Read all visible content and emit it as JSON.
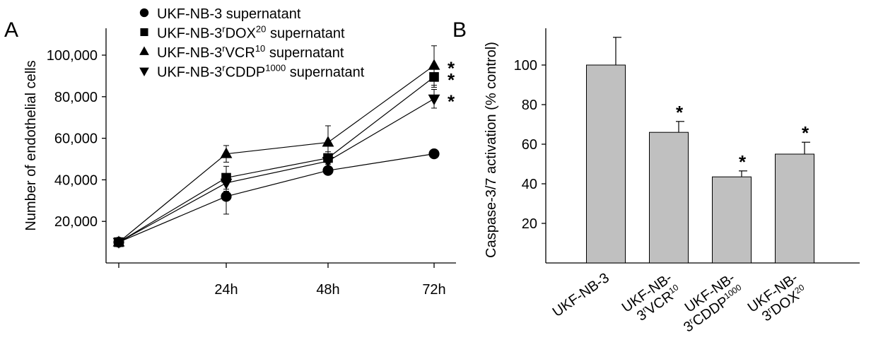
{
  "panels": {
    "a_label": "A",
    "b_label": "B"
  },
  "chart_data": [
    {
      "type": "line",
      "ylabel": "Number of endothelial cells",
      "xlabel": "",
      "x": [
        "0h",
        "24h",
        "48h",
        "72h"
      ],
      "x_tick_labels": [
        "",
        "24h",
        "48h",
        "72h"
      ],
      "ylim": [
        0,
        110000
      ],
      "y_ticks": [
        20000,
        40000,
        60000,
        80000,
        100000
      ],
      "y_tick_labels": [
        "20,000",
        "40,000",
        "60,000",
        "80,000",
        "100,000"
      ],
      "grid": false,
      "legend_position": "top-left",
      "series": [
        {
          "name": "UKF-NB-3 supernatant",
          "legend_base": "UKF-NB-3 supernatant",
          "legend_sup": "",
          "legend_tail": "",
          "marker": "circle",
          "values": [
            10000,
            32000,
            44500,
            52500
          ],
          "errors": [
            0,
            8500,
            0,
            0
          ],
          "significant": false
        },
        {
          "name": "UKF-NB-3rDOX20 supernatant",
          "legend_base": "UKF-NB-3",
          "legend_r": "r",
          "legend_mid": "DOX",
          "legend_sup": "20",
          "legend_tail": " supernatant",
          "marker": "square",
          "values": [
            10000,
            41000,
            50500,
            89500
          ],
          "errors": [
            0,
            5500,
            3000,
            5000
          ],
          "significant": true
        },
        {
          "name": "UKF-NB-3rVCR10 supernatant",
          "legend_base": "UKF-NB-3",
          "legend_r": "r",
          "legend_mid": "VCR",
          "legend_sup": "10",
          "legend_tail": " supernatant",
          "marker": "triangle-up",
          "values": [
            10000,
            52500,
            58000,
            95000
          ],
          "errors": [
            0,
            4000,
            8000,
            9500
          ],
          "significant": true
        },
        {
          "name": "UKF-NB-3rCDDP1000 supernatant",
          "legend_base": "UKF-NB-3",
          "legend_r": "r",
          "legend_mid": "CDDP",
          "legend_sup": "1000",
          "legend_tail": " supernatant",
          "marker": "triangle-down",
          "values": [
            10000,
            38500,
            49000,
            79000
          ],
          "errors": [
            0,
            4000,
            0,
            4500
          ],
          "significant": true
        }
      ],
      "significance_marker": "*"
    },
    {
      "type": "bar",
      "ylabel": "Caspase-3/7 activation (% control)",
      "xlabel": "",
      "categories": [
        "UKF-NB-3",
        "UKF-NB-3rVCR10",
        "UKF-NB-3rCDDP1000",
        "UKF-NB-3rDOX20"
      ],
      "category_labels": [
        {
          "line1": "UKF-NB-3",
          "line2_pre": "",
          "line2_r": "",
          "line2_mid": "",
          "line2_sup": ""
        },
        {
          "line1": "UKF-NB-",
          "line2_pre": "3",
          "line2_r": "r",
          "line2_mid": "VCR",
          "line2_sup": "10"
        },
        {
          "line1": "UKF-NB-",
          "line2_pre": "3",
          "line2_r": "r",
          "line2_mid": "CDDP",
          "line2_sup": "1000"
        },
        {
          "line1": "UKF-NB-",
          "line2_pre": "3",
          "line2_r": "r",
          "line2_mid": "DOX",
          "line2_sup": "20"
        }
      ],
      "values": [
        100,
        66,
        43.5,
        55
      ],
      "errors": [
        14,
        5.5,
        3,
        6
      ],
      "significant": [
        false,
        true,
        true,
        true
      ],
      "ylim": [
        0,
        115
      ],
      "y_ticks": [
        20,
        40,
        60,
        80,
        100
      ],
      "y_tick_labels": [
        "20",
        "40",
        "60",
        "80",
        "100"
      ],
      "bar_color": "#c0c0c0",
      "significance_marker": "*",
      "grid": false
    }
  ]
}
